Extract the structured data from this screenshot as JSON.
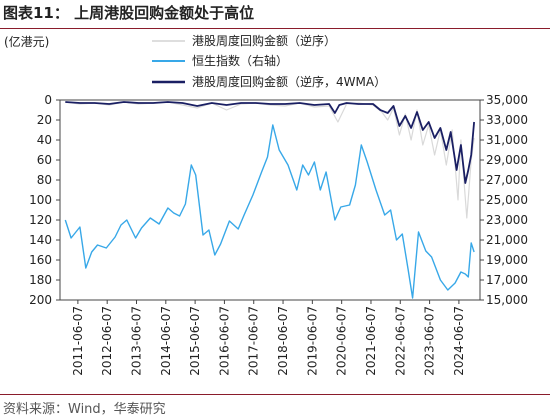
{
  "figure": {
    "title": "图表11：  上周港股回购金额处于高位",
    "source": "资料来源：Wind，华泰研究"
  },
  "chart_data": {
    "type": "line",
    "left_axis": {
      "unit": "(亿港元)",
      "range": [
        0,
        200
      ],
      "reversed": true,
      "ticks": [
        "0",
        "20",
        "40",
        "60",
        "80",
        "100",
        "120",
        "140",
        "160",
        "180",
        "200"
      ]
    },
    "right_axis": {
      "range": [
        15000,
        35000
      ],
      "ticks": [
        "35,000",
        "33,000",
        "31,000",
        "29,000",
        "27,000",
        "25,000",
        "23,000",
        "21,000",
        "19,000",
        "17,000",
        "15,000"
      ]
    },
    "x_ticks": [
      "2011-06-07",
      "2012-06-07",
      "2013-06-07",
      "2014-06-07",
      "2015-06-07",
      "2016-06-07",
      "2017-06-07",
      "2018-06-07",
      "2019-06-07",
      "2020-06-07",
      "2021-06-07",
      "2022-06-07",
      "2023-06-07",
      "2024-06-07"
    ],
    "grid": false,
    "legend_position": "top-right",
    "series": [
      {
        "name": "港股周度回购金额（逆序）",
        "axis": "left",
        "color": "#d9d9d9",
        "width": 1.2,
        "x": [
          2011.0,
          2011.5,
          2012.0,
          2012.5,
          2013.0,
          2013.5,
          2014.0,
          2014.5,
          2015.0,
          2015.5,
          2016.0,
          2016.5,
          2017.0,
          2017.5,
          2018.0,
          2018.5,
          2019.0,
          2019.5,
          2020.0,
          2020.3,
          2020.6,
          2021.0,
          2021.5,
          2021.8,
          2022.0,
          2022.2,
          2022.4,
          2022.6,
          2022.8,
          2023.0,
          2023.2,
          2023.4,
          2023.6,
          2023.8,
          2024.0,
          2024.2,
          2024.4,
          2024.5,
          2024.7,
          2024.85,
          2024.95
        ],
        "y": [
          2,
          4,
          3,
          5,
          2,
          4,
          3,
          2,
          5,
          8,
          3,
          10,
          4,
          3,
          5,
          6,
          3,
          7,
          6,
          22,
          4,
          3,
          5,
          12,
          20,
          8,
          35,
          14,
          40,
          10,
          45,
          25,
          55,
          30,
          65,
          30,
          100,
          40,
          118,
          60,
          38
        ]
      },
      {
        "name": "恒生指数（右轴）",
        "axis": "right",
        "color": "#38a8e8",
        "width": 1.4,
        "x": [
          2011.0,
          2011.2,
          2011.5,
          2011.7,
          2011.9,
          2012.1,
          2012.4,
          2012.7,
          2012.9,
          2013.1,
          2013.4,
          2013.6,
          2013.9,
          2014.2,
          2014.5,
          2014.7,
          2014.9,
          2015.1,
          2015.3,
          2015.45,
          2015.7,
          2015.9,
          2016.1,
          2016.3,
          2016.6,
          2016.9,
          2017.1,
          2017.4,
          2017.7,
          2017.9,
          2018.08,
          2018.3,
          2018.6,
          2018.9,
          2019.1,
          2019.3,
          2019.5,
          2019.7,
          2019.9,
          2020.2,
          2020.4,
          2020.7,
          2020.9,
          2021.1,
          2021.3,
          2021.6,
          2021.9,
          2022.1,
          2022.3,
          2022.5,
          2022.7,
          2022.85,
          2023.05,
          2023.3,
          2023.5,
          2023.8,
          2024.05,
          2024.3,
          2024.5,
          2024.65,
          2024.75,
          2024.85,
          2024.95
        ],
        "y": [
          23000,
          21200,
          22300,
          18200,
          19800,
          20500,
          20200,
          21300,
          22500,
          23000,
          21200,
          22200,
          23200,
          22600,
          24200,
          23700,
          23400,
          24600,
          28500,
          27500,
          21500,
          22000,
          19500,
          20600,
          22900,
          22100,
          23500,
          25500,
          27800,
          29300,
          32500,
          30000,
          28500,
          26000,
          28500,
          27500,
          28800,
          26000,
          27800,
          23000,
          24300,
          24500,
          26500,
          30500,
          28800,
          26000,
          23500,
          24000,
          21000,
          21600,
          18000,
          15200,
          21800,
          19900,
          19300,
          17000,
          16000,
          16700,
          17800,
          17600,
          17300,
          20700,
          19800
        ]
      },
      {
        "name": "港股周度回购金额（逆序，4WMA）",
        "axis": "left",
        "color": "#1a1f63",
        "width": 1.8,
        "x": [
          2011.0,
          2011.5,
          2012.0,
          2012.5,
          2013.0,
          2013.5,
          2014.0,
          2014.5,
          2015.0,
          2015.5,
          2016.0,
          2016.5,
          2017.0,
          2017.5,
          2018.0,
          2018.5,
          2019.0,
          2019.5,
          2020.0,
          2020.2,
          2020.35,
          2020.6,
          2021.0,
          2021.5,
          2021.75,
          2022.0,
          2022.2,
          2022.4,
          2022.6,
          2022.8,
          2023.0,
          2023.2,
          2023.4,
          2023.6,
          2023.8,
          2024.0,
          2024.15,
          2024.35,
          2024.5,
          2024.65,
          2024.75,
          2024.85,
          2024.95
        ],
        "y": [
          2,
          3,
          3,
          4,
          2,
          3,
          3,
          2,
          3,
          6,
          3,
          5,
          3,
          3,
          4,
          4,
          3,
          5,
          4,
          13,
          5,
          3,
          4,
          4,
          10,
          13,
          6,
          26,
          16,
          28,
          12,
          30,
          22,
          38,
          28,
          50,
          32,
          70,
          45,
          83,
          70,
          55,
          22
        ]
      }
    ]
  }
}
